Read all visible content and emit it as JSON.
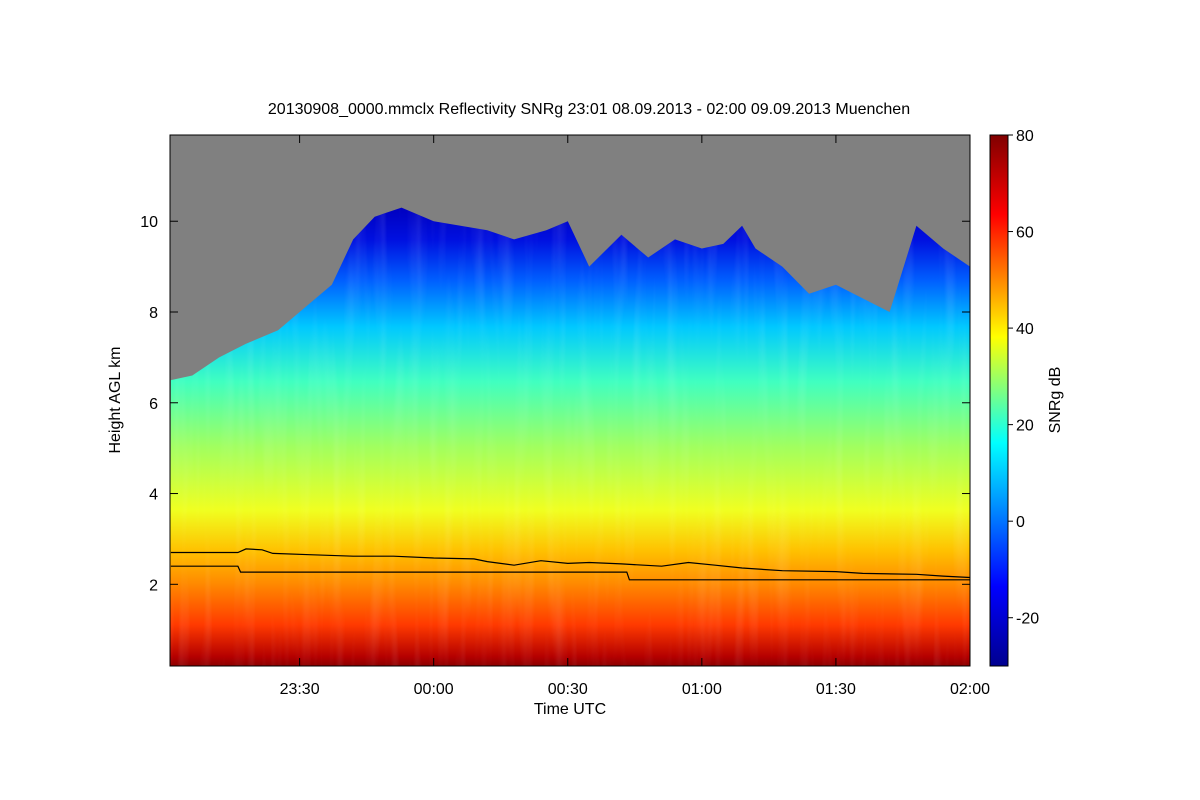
{
  "chart_data": {
    "type": "heatmap",
    "title": "20130908_0000.mmclx Reflectivity SNRg   23:01 08.09.2013 - 02:00 09.09.2013 Muenchen",
    "xlabel": "Time UTC",
    "ylabel": "Height AGL km",
    "x_range_hours_utc": [
      23.0167,
      26.0
    ],
    "x_ticks": [
      {
        "label": "23:30",
        "value": 23.5
      },
      {
        "label": "00:00",
        "value": 24.0
      },
      {
        "label": "00:30",
        "value": 24.5
      },
      {
        "label": "01:00",
        "value": 25.0
      },
      {
        "label": "01:30",
        "value": 25.5
      },
      {
        "label": "02:00",
        "value": 26.0
      }
    ],
    "y_range_km": [
      0.2,
      11.9
    ],
    "y_ticks": [
      {
        "label": "2",
        "value": 2
      },
      {
        "label": "4",
        "value": 4
      },
      {
        "label": "6",
        "value": 6
      },
      {
        "label": "8",
        "value": 8
      },
      {
        "label": "10",
        "value": 10
      }
    ],
    "colorbar": {
      "label": "SNRg dB",
      "range": [
        -30,
        80
      ],
      "ticks": [
        {
          "label": "-20",
          "value": -20
        },
        {
          "label": "0",
          "value": 0
        },
        {
          "label": "20",
          "value": 20
        },
        {
          "label": "40",
          "value": 40
        },
        {
          "label": "60",
          "value": 60
        },
        {
          "label": "80",
          "value": 80
        }
      ],
      "colors": [
        "#00008f",
        "#0000ff",
        "#00ffff",
        "#ffff00",
        "#ff0000",
        "#800000"
      ]
    },
    "no_signal_color": "#808080",
    "echo_top_km": [
      [
        23.02,
        6.5
      ],
      [
        23.1,
        6.6
      ],
      [
        23.2,
        7.0
      ],
      [
        23.3,
        7.3
      ],
      [
        23.42,
        7.6
      ],
      [
        23.5,
        8.0
      ],
      [
        23.62,
        8.6
      ],
      [
        23.7,
        9.6
      ],
      [
        23.78,
        10.1
      ],
      [
        23.88,
        10.3
      ],
      [
        24.0,
        10.0
      ],
      [
        24.1,
        9.9
      ],
      [
        24.2,
        9.8
      ],
      [
        24.3,
        9.6
      ],
      [
        24.42,
        9.8
      ],
      [
        24.5,
        10.0
      ],
      [
        24.58,
        9.0
      ],
      [
        24.7,
        9.7
      ],
      [
        24.8,
        9.2
      ],
      [
        24.9,
        9.6
      ],
      [
        25.0,
        9.4
      ],
      [
        25.08,
        9.5
      ],
      [
        25.15,
        9.9
      ],
      [
        25.2,
        9.4
      ],
      [
        25.3,
        9.0
      ],
      [
        25.4,
        8.4
      ],
      [
        25.5,
        8.6
      ],
      [
        25.6,
        8.3
      ],
      [
        25.7,
        8.0
      ],
      [
        25.8,
        9.9
      ],
      [
        25.9,
        9.4
      ],
      [
        26.0,
        9.0
      ]
    ],
    "lines": [
      {
        "name": "upper boundary line",
        "color": "#000000",
        "points": [
          [
            23.02,
            2.7
          ],
          [
            23.27,
            2.7
          ],
          [
            23.3,
            2.78
          ],
          [
            23.36,
            2.76
          ],
          [
            23.4,
            2.68
          ],
          [
            23.55,
            2.65
          ],
          [
            23.7,
            2.62
          ],
          [
            23.85,
            2.62
          ],
          [
            24.0,
            2.58
          ],
          [
            24.15,
            2.56
          ],
          [
            24.2,
            2.5
          ],
          [
            24.3,
            2.42
          ],
          [
            24.4,
            2.52
          ],
          [
            24.5,
            2.46
          ],
          [
            24.58,
            2.48
          ],
          [
            24.7,
            2.45
          ],
          [
            24.85,
            2.4
          ],
          [
            24.95,
            2.48
          ],
          [
            25.05,
            2.42
          ],
          [
            25.15,
            2.36
          ],
          [
            25.3,
            2.3
          ],
          [
            25.5,
            2.28
          ],
          [
            25.6,
            2.24
          ],
          [
            25.8,
            2.22
          ],
          [
            25.9,
            2.18
          ],
          [
            26.0,
            2.15
          ]
        ]
      },
      {
        "name": "lower boundary line",
        "color": "#000000",
        "points": [
          [
            23.02,
            2.4
          ],
          [
            23.27,
            2.4
          ],
          [
            23.28,
            2.27
          ],
          [
            24.6,
            2.27
          ],
          [
            24.72,
            2.27
          ],
          [
            24.73,
            2.1
          ],
          [
            26.0,
            2.1
          ]
        ]
      }
    ]
  }
}
